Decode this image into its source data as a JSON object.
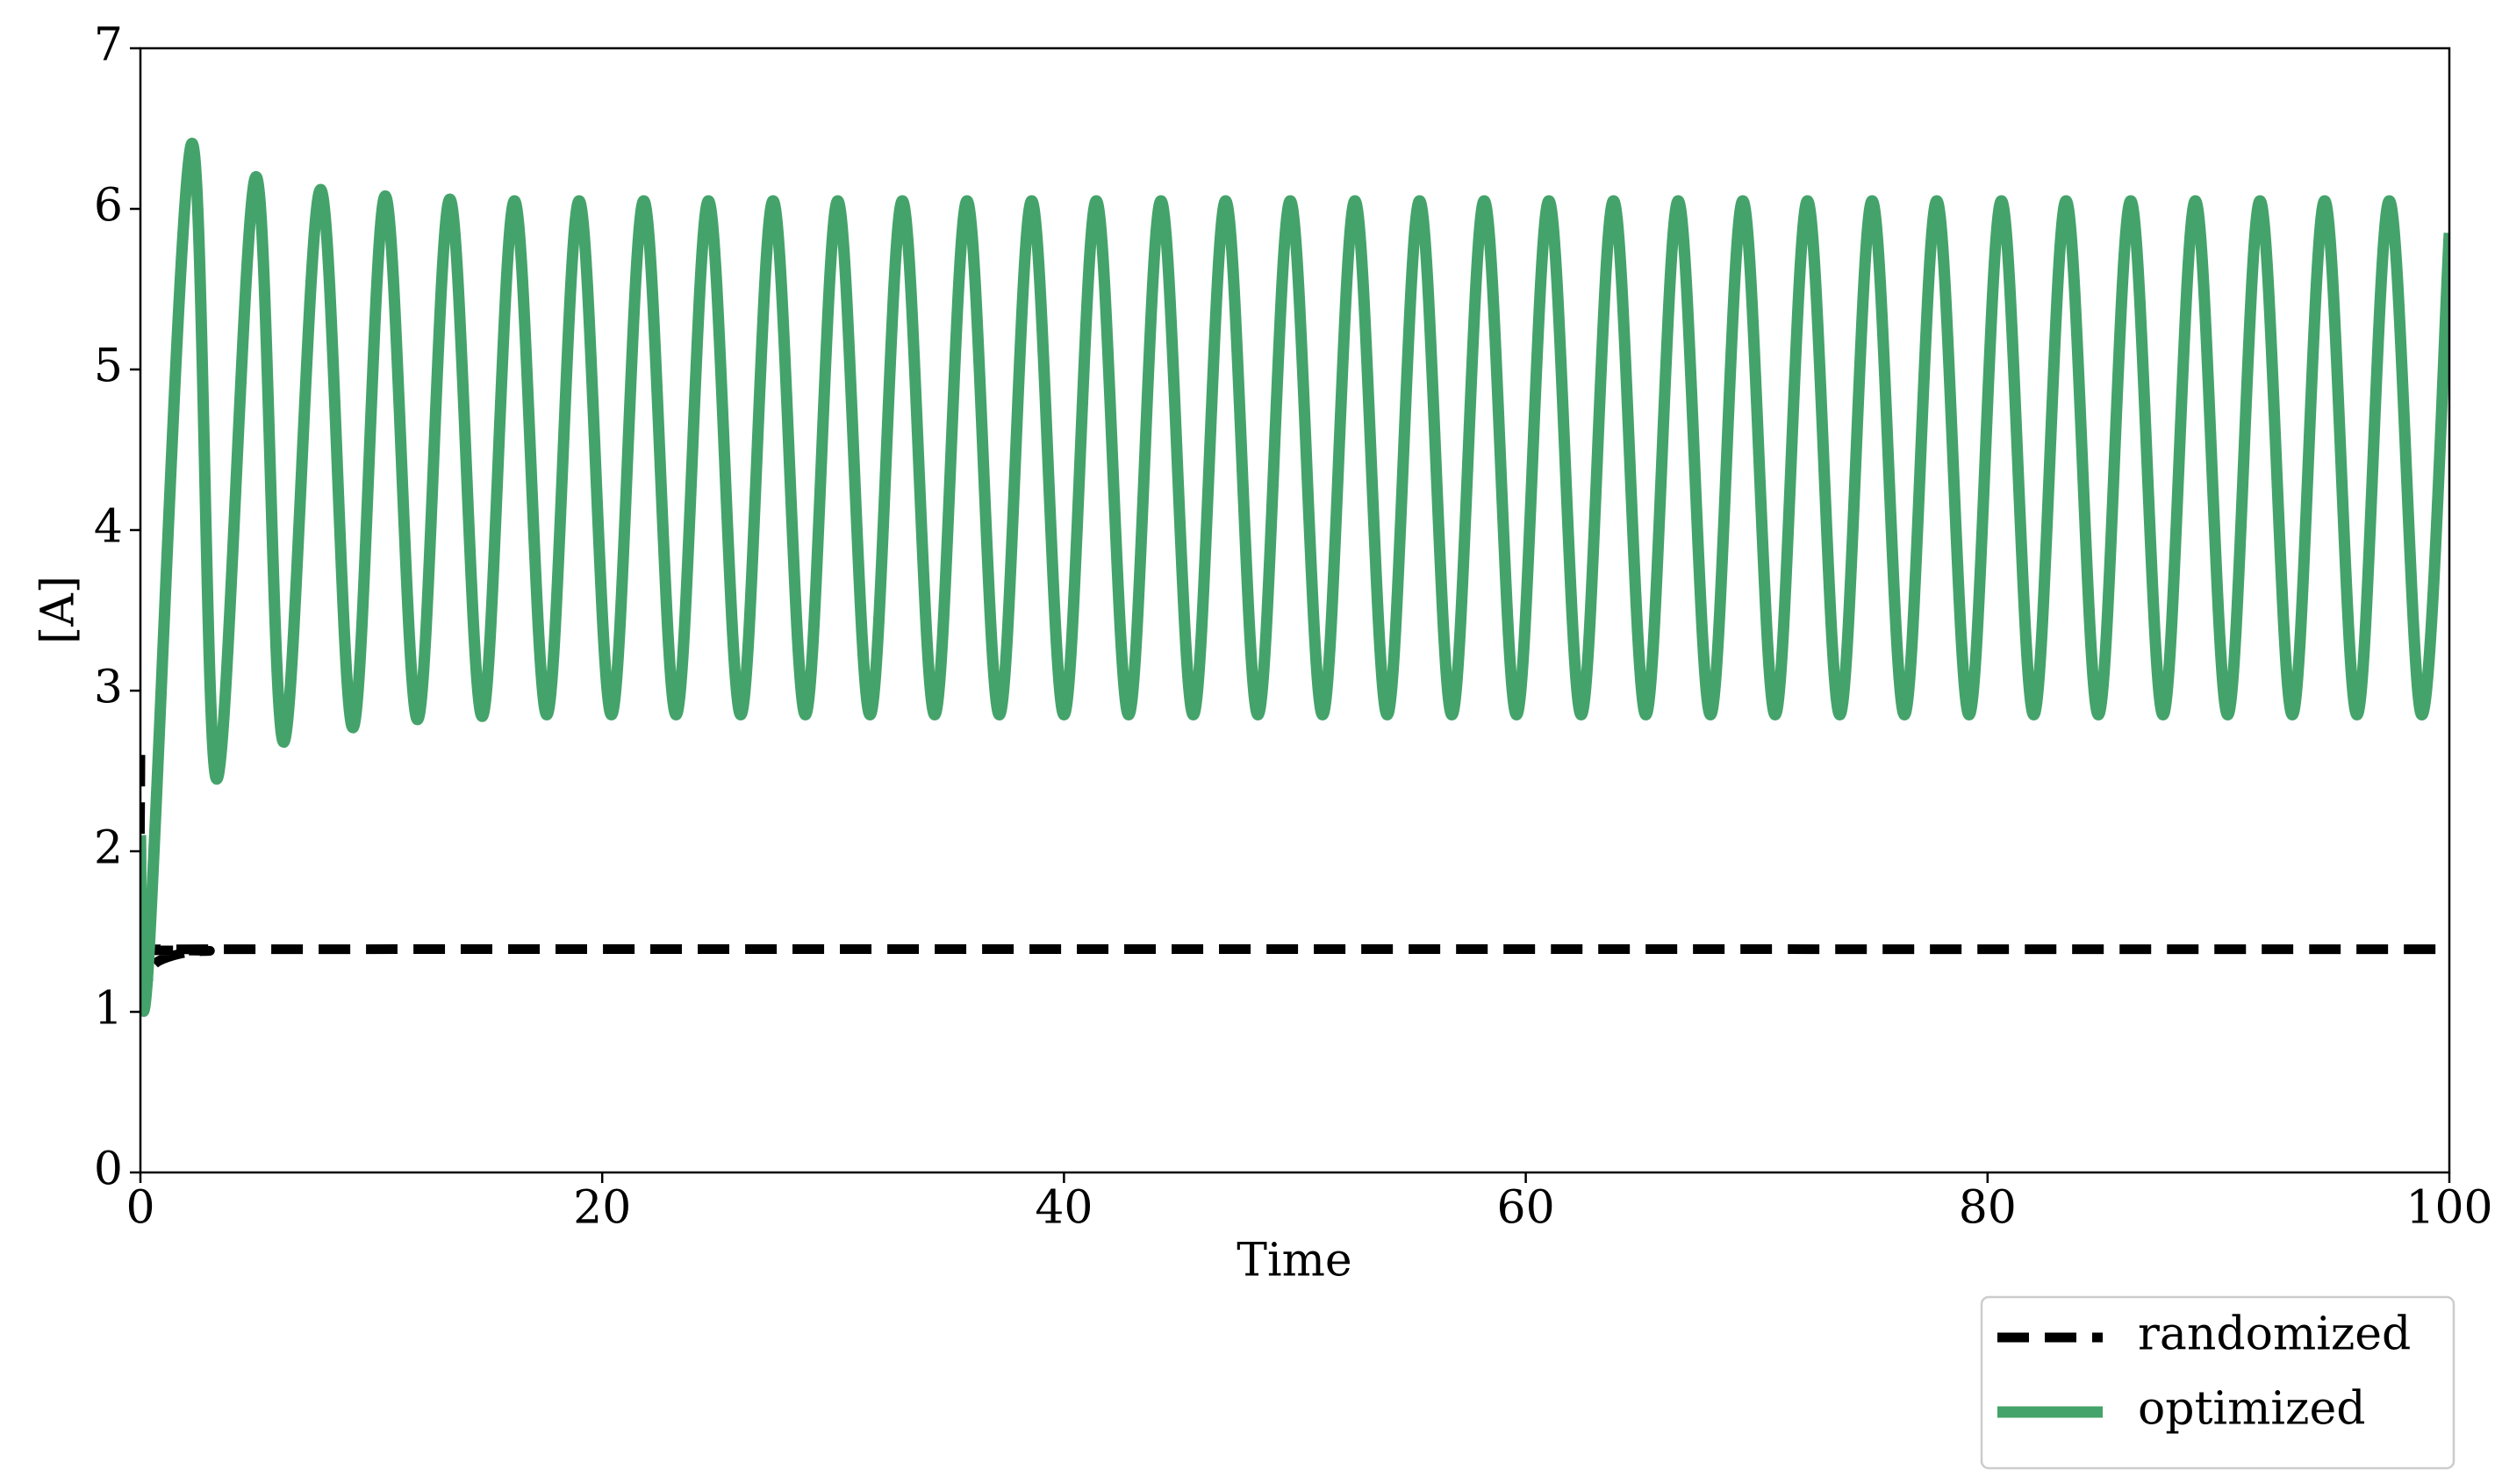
{
  "chart_data": {
    "type": "line",
    "xlabel": "Time",
    "ylabel": "[A]",
    "xlim": [
      0,
      100
    ],
    "xticks": [
      0,
      20,
      40,
      60,
      80,
      100
    ],
    "ylim": [
      0,
      7
    ],
    "yticks": [
      0,
      1,
      2,
      3,
      4,
      5,
      6,
      7
    ],
    "legend": "lower right outside",
    "series": [
      {
        "name": "randomized",
        "color": "#000000",
        "linestyle": "dashed",
        "x": [
          0,
          0,
          0.5,
          1,
          2,
          3,
          5,
          100
        ],
        "values": [
          2.6,
          1.15,
          1.28,
          1.33,
          1.37,
          1.38,
          1.39,
          1.39
        ]
      },
      {
        "name": "optimized",
        "color": "#44a36a",
        "linestyle": "solid",
        "x": [
          0,
          0.3,
          2.2,
          3.3,
          5,
          6.2,
          7.8,
          9.2,
          10.6,
          12,
          13.4,
          14.8,
          16.2,
          17.6,
          19,
          20.4,
          21.8,
          23.2,
          24.6,
          26,
          27.4,
          28.8,
          30.2,
          31.6,
          33,
          34.4,
          35.8,
          37.2,
          38.6,
          40,
          41.4,
          42.8,
          44.2,
          45.6,
          47,
          48.4,
          49.8,
          51.2,
          52.6,
          54,
          55.4,
          56.8,
          58.2,
          59.6,
          61,
          62.4,
          63.8,
          65.2,
          66.6,
          68,
          69.4,
          70.8,
          72.2,
          73.6,
          75,
          76.4,
          77.8,
          79.2,
          80.6,
          82,
          83.4,
          84.8,
          86.2,
          87.6,
          89,
          90.4,
          91.8,
          93.2,
          94.6,
          96,
          97.4,
          98.8,
          100
        ],
        "values": [
          2.1,
          1.2,
          6.4,
          2.45,
          6.2,
          2.68,
          6.12,
          2.77,
          6.08,
          2.82,
          6.06,
          2.84,
          6.05,
          2.85,
          6.05,
          2.85,
          6.05,
          2.85,
          6.05,
          2.85,
          6.05,
          2.85,
          6.05,
          2.85,
          6.05,
          2.85,
          6.05,
          2.85,
          6.05,
          2.85,
          6.05,
          2.85,
          6.05,
          2.85,
          6.05,
          2.85,
          6.05,
          2.85,
          6.05,
          2.85,
          6.05,
          2.85,
          6.05,
          2.85,
          6.05,
          2.85,
          6.05,
          2.85,
          6.05,
          2.85,
          6.05,
          2.85,
          6.05,
          2.85,
          6.05,
          2.85,
          6.05,
          2.85,
          6.05,
          2.85,
          6.05,
          2.85,
          6.05,
          2.85,
          6.05,
          2.85,
          6.05,
          2.85,
          6.05,
          2.85,
          6.05,
          2.85,
          5.85
        ]
      }
    ]
  }
}
